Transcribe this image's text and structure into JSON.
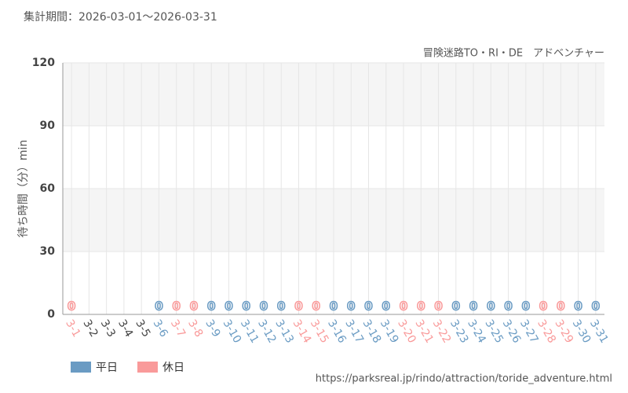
{
  "chart_data": {
    "type": "bar",
    "header": "集計期間：2026-03-01～2026-03-31",
    "subtitle": "冒険迷路TO・RI・DE　アドベンチャー",
    "y_label": "待ち時間（分）min",
    "footer": "https://parksreal.jp/rindo/attraction/toride_adventure.html",
    "categories": [
      "3-1",
      "3-2",
      "3-3",
      "3-4",
      "3-5",
      "3-6",
      "3-7",
      "3-8",
      "3-9",
      "3-10",
      "3-11",
      "3-12",
      "3-13",
      "3-14",
      "3-15",
      "3-16",
      "3-17",
      "3-18",
      "3-19",
      "3-20",
      "3-21",
      "3-22",
      "3-23",
      "3-24",
      "3-25",
      "3-26",
      "3-27",
      "3-28",
      "3-29",
      "3-30",
      "3-31"
    ],
    "series": [
      {
        "name": "平日",
        "color": "#6a9bc3",
        "values": [
          null,
          null,
          null,
          null,
          null,
          0,
          null,
          null,
          0,
          0,
          0,
          0,
          0,
          null,
          null,
          0,
          0,
          0,
          0,
          null,
          null,
          null,
          0,
          0,
          0,
          0,
          0,
          null,
          null,
          0,
          0
        ]
      },
      {
        "name": "休日",
        "color": "#f99a9a",
        "values": [
          0,
          null,
          null,
          null,
          null,
          null,
          0,
          0,
          null,
          null,
          null,
          null,
          null,
          0,
          0,
          null,
          null,
          null,
          null,
          0,
          0,
          0,
          null,
          null,
          null,
          null,
          null,
          0,
          0,
          null,
          null
        ]
      }
    ],
    "ylim": [
      0,
      120
    ],
    "yticks": [
      0,
      30,
      60,
      90,
      120
    ],
    "grid": true
  }
}
